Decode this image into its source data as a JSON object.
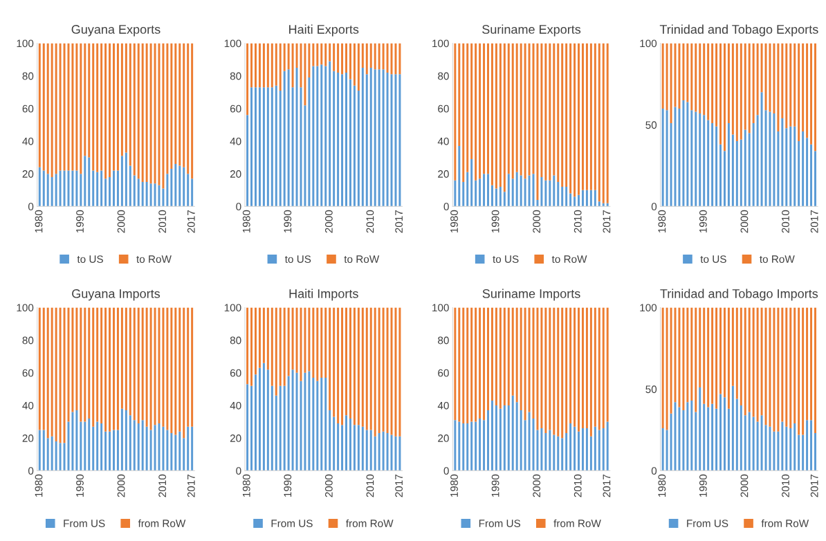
{
  "chart_data": [
    {
      "type": "bar",
      "stacked": true,
      "title": "Guyana Exports",
      "categories": [
        "1980",
        null,
        null,
        null,
        null,
        null,
        null,
        null,
        null,
        null,
        "1990",
        null,
        null,
        null,
        null,
        null,
        null,
        null,
        null,
        null,
        "2000",
        null,
        null,
        null,
        null,
        null,
        null,
        null,
        null,
        null,
        "2010",
        null,
        null,
        null,
        null,
        null,
        null,
        "2017"
      ],
      "ylim": [
        0,
        100
      ],
      "yticks": [
        0,
        20,
        40,
        60,
        80,
        100
      ],
      "legend": "bottom",
      "series": [
        {
          "name": "to US",
          "color": "#5b9bd5",
          "values": [
            24,
            22,
            20,
            18,
            20,
            22,
            22,
            22,
            22,
            22,
            20,
            31,
            30,
            22,
            21,
            22,
            17,
            18,
            22,
            22,
            31,
            33,
            25,
            19,
            17,
            15,
            15,
            14,
            14,
            13,
            11,
            20,
            23,
            26,
            25,
            24,
            20,
            17
          ]
        },
        {
          "name": "to RoW",
          "color": "#ed7d31",
          "values": [
            76,
            78,
            80,
            82,
            80,
            78,
            78,
            78,
            78,
            78,
            80,
            69,
            70,
            78,
            79,
            78,
            83,
            82,
            78,
            78,
            69,
            67,
            75,
            81,
            83,
            85,
            85,
            86,
            86,
            87,
            89,
            80,
            77,
            74,
            75,
            76,
            80,
            83
          ]
        }
      ]
    },
    {
      "type": "bar",
      "stacked": true,
      "title": "Haiti Exports",
      "categories": [
        "1980",
        null,
        null,
        null,
        null,
        null,
        null,
        null,
        null,
        null,
        "1990",
        null,
        null,
        null,
        null,
        null,
        null,
        null,
        null,
        null,
        "2000",
        null,
        null,
        null,
        null,
        null,
        null,
        null,
        null,
        null,
        "2010",
        null,
        null,
        null,
        null,
        null,
        null,
        "2017"
      ],
      "ylim": [
        0,
        100
      ],
      "yticks": [
        0,
        20,
        40,
        60,
        80,
        100
      ],
      "legend": "bottom",
      "series": [
        {
          "name": "to US",
          "color": "#5b9bd5",
          "values": [
            56,
            73,
            73,
            73,
            73,
            73,
            73,
            74,
            71,
            83,
            84,
            73,
            85,
            73,
            62,
            79,
            86,
            86,
            87,
            86,
            89,
            83,
            82,
            81,
            82,
            78,
            74,
            71,
            85,
            81,
            85,
            84,
            84,
            84,
            82,
            81,
            81,
            81
          ]
        },
        {
          "name": "to RoW",
          "color": "#ed7d31",
          "values": [
            44,
            27,
            27,
            27,
            27,
            27,
            27,
            26,
            29,
            17,
            16,
            27,
            15,
            27,
            38,
            21,
            14,
            14,
            13,
            14,
            11,
            17,
            18,
            19,
            18,
            22,
            26,
            29,
            15,
            19,
            15,
            16,
            16,
            16,
            18,
            19,
            19,
            19
          ]
        }
      ]
    },
    {
      "type": "bar",
      "stacked": true,
      "title": "Suriname Exports",
      "categories": [
        "1980",
        null,
        null,
        null,
        null,
        null,
        null,
        null,
        null,
        null,
        "1990",
        null,
        null,
        null,
        null,
        null,
        null,
        null,
        null,
        null,
        "2000",
        null,
        null,
        null,
        null,
        null,
        null,
        null,
        null,
        null,
        "2010",
        null,
        null,
        null,
        null,
        null,
        null,
        "2017"
      ],
      "ylim": [
        0,
        100
      ],
      "yticks": [
        0,
        20,
        40,
        60,
        80,
        100
      ],
      "legend": "bottom",
      "series": [
        {
          "name": "to US",
          "color": "#5b9bd5",
          "values": [
            16,
            37,
            15,
            21,
            29,
            16,
            17,
            20,
            20,
            13,
            11,
            12,
            9,
            20,
            17,
            21,
            19,
            17,
            19,
            20,
            4,
            18,
            16,
            16,
            19,
            15,
            12,
            12,
            8,
            6,
            7,
            10,
            10,
            10,
            10,
            3,
            2,
            2
          ]
        },
        {
          "name": "to RoW",
          "color": "#ed7d31",
          "values": [
            84,
            63,
            85,
            79,
            71,
            84,
            83,
            80,
            80,
            87,
            89,
            88,
            91,
            80,
            83,
            79,
            81,
            83,
            81,
            80,
            96,
            82,
            84,
            84,
            81,
            85,
            88,
            88,
            92,
            94,
            93,
            90,
            90,
            90,
            90,
            97,
            98,
            98
          ]
        }
      ]
    },
    {
      "type": "bar",
      "stacked": true,
      "title": "Trinidad and Tobago Exports",
      "categories": [
        "1980",
        null,
        null,
        null,
        null,
        null,
        null,
        null,
        null,
        null,
        "1990",
        null,
        null,
        null,
        null,
        null,
        null,
        null,
        null,
        null,
        "2000",
        null,
        null,
        null,
        null,
        null,
        null,
        null,
        null,
        null,
        "2010",
        null,
        null,
        null,
        null,
        null,
        null,
        "2017"
      ],
      "ylim": [
        0,
        100
      ],
      "yticks": [
        0,
        50,
        100
      ],
      "legend": "bottom",
      "series": [
        {
          "name": "to US",
          "color": "#5b9bd5",
          "values": [
            60,
            59,
            51,
            61,
            60,
            65,
            64,
            59,
            58,
            57,
            56,
            53,
            51,
            49,
            38,
            34,
            51,
            44,
            40,
            41,
            47,
            45,
            51,
            56,
            70,
            59,
            58,
            57,
            46,
            54,
            48,
            49,
            49,
            40,
            46,
            42,
            38,
            34
          ]
        },
        {
          "name": "to RoW",
          "color": "#ed7d31",
          "values": [
            40,
            41,
            49,
            39,
            40,
            35,
            36,
            41,
            42,
            43,
            44,
            47,
            49,
            51,
            62,
            66,
            49,
            56,
            60,
            59,
            53,
            55,
            49,
            44,
            30,
            41,
            42,
            43,
            54,
            46,
            52,
            51,
            51,
            60,
            54,
            58,
            62,
            66
          ]
        }
      ]
    },
    {
      "type": "bar",
      "stacked": true,
      "title": "Guyana Imports",
      "categories": [
        "1980",
        null,
        null,
        null,
        null,
        null,
        null,
        null,
        null,
        null,
        "1990",
        null,
        null,
        null,
        null,
        null,
        null,
        null,
        null,
        null,
        "2000",
        null,
        null,
        null,
        null,
        null,
        null,
        null,
        null,
        null,
        "2010",
        null,
        null,
        null,
        null,
        null,
        null,
        "2017"
      ],
      "ylim": [
        0,
        100
      ],
      "yticks": [
        0,
        20,
        40,
        60,
        80,
        100
      ],
      "legend": "bottom",
      "series": [
        {
          "name": "From US",
          "color": "#5b9bd5",
          "values": [
            25,
            25,
            20,
            21,
            18,
            17,
            17,
            30,
            36,
            37,
            30,
            30,
            32,
            27,
            30,
            29,
            24,
            24,
            25,
            25,
            38,
            37,
            34,
            31,
            29,
            31,
            27,
            25,
            28,
            29,
            27,
            25,
            23,
            22,
            24,
            20,
            27,
            27
          ]
        },
        {
          "name": "from RoW",
          "color": "#ed7d31",
          "values": [
            75,
            75,
            80,
            79,
            82,
            83,
            83,
            70,
            64,
            63,
            70,
            70,
            68,
            73,
            70,
            71,
            76,
            76,
            75,
            75,
            62,
            63,
            66,
            69,
            71,
            69,
            73,
            75,
            72,
            71,
            73,
            75,
            77,
            78,
            76,
            80,
            73,
            73
          ]
        }
      ]
    },
    {
      "type": "bar",
      "stacked": true,
      "title": "Haiti Imports",
      "categories": [
        "1980",
        null,
        null,
        null,
        null,
        null,
        null,
        null,
        null,
        null,
        "1990",
        null,
        null,
        null,
        null,
        null,
        null,
        null,
        null,
        null,
        "2000",
        null,
        null,
        null,
        null,
        null,
        null,
        null,
        null,
        null,
        "2010",
        null,
        null,
        null,
        null,
        null,
        null,
        "2017"
      ],
      "ylim": [
        0,
        100
      ],
      "yticks": [
        0,
        20,
        40,
        60,
        80,
        100
      ],
      "legend": "bottom",
      "series": [
        {
          "name": "From US",
          "color": "#5b9bd5",
          "values": [
            53,
            52,
            59,
            63,
            66,
            62,
            52,
            46,
            52,
            52,
            58,
            62,
            60,
            55,
            60,
            61,
            57,
            55,
            57,
            57,
            37,
            33,
            29,
            28,
            34,
            32,
            28,
            28,
            27,
            25,
            25,
            21,
            23,
            24,
            23,
            22,
            21,
            21
          ]
        },
        {
          "name": "from RoW",
          "color": "#ed7d31",
          "values": [
            47,
            48,
            41,
            37,
            34,
            38,
            48,
            54,
            48,
            48,
            42,
            38,
            40,
            45,
            40,
            39,
            43,
            45,
            43,
            43,
            63,
            67,
            71,
            72,
            66,
            68,
            72,
            72,
            73,
            75,
            75,
            79,
            77,
            76,
            77,
            78,
            79,
            79
          ]
        }
      ]
    },
    {
      "type": "bar",
      "stacked": true,
      "title": "Suriname Imports",
      "categories": [
        "1980",
        null,
        null,
        null,
        null,
        null,
        null,
        null,
        null,
        null,
        "1990",
        null,
        null,
        null,
        null,
        null,
        null,
        null,
        null,
        null,
        "2000",
        null,
        null,
        null,
        null,
        null,
        null,
        null,
        null,
        null,
        "2010",
        null,
        null,
        null,
        null,
        null,
        null,
        "2017"
      ],
      "ylim": [
        0,
        100
      ],
      "yticks": [
        0,
        20,
        40,
        60,
        80,
        100
      ],
      "legend": "bottom",
      "series": [
        {
          "name": "From US",
          "color": "#5b9bd5",
          "values": [
            31,
            30,
            29,
            29,
            30,
            30,
            32,
            31,
            37,
            43,
            40,
            38,
            40,
            40,
            46,
            42,
            37,
            31,
            36,
            32,
            25,
            26,
            23,
            25,
            22,
            21,
            20,
            23,
            29,
            27,
            24,
            26,
            26,
            21,
            27,
            25,
            26,
            30
          ]
        },
        {
          "name": "from RoW",
          "color": "#ed7d31",
          "values": [
            69,
            70,
            71,
            71,
            70,
            70,
            68,
            69,
            63,
            57,
            60,
            62,
            60,
            60,
            54,
            58,
            63,
            69,
            64,
            68,
            75,
            74,
            77,
            75,
            78,
            79,
            80,
            77,
            71,
            73,
            76,
            74,
            74,
            79,
            73,
            75,
            74,
            70
          ]
        }
      ]
    },
    {
      "type": "bar",
      "stacked": true,
      "title": "Trinidad and Tobago Imports",
      "categories": [
        "1980",
        null,
        null,
        null,
        null,
        null,
        null,
        null,
        null,
        null,
        "1990",
        null,
        null,
        null,
        null,
        null,
        null,
        null,
        null,
        null,
        "2000",
        null,
        null,
        null,
        null,
        null,
        null,
        null,
        null,
        null,
        "2010",
        null,
        null,
        null,
        null,
        null,
        null,
        "2017"
      ],
      "ylim": [
        0,
        100
      ],
      "yticks": [
        0,
        50,
        100
      ],
      "legend": "bottom",
      "series": [
        {
          "name": "From US",
          "color": "#5b9bd5",
          "values": [
            26,
            25,
            35,
            42,
            39,
            37,
            42,
            43,
            36,
            51,
            41,
            39,
            41,
            38,
            47,
            45,
            38,
            52,
            44,
            40,
            34,
            36,
            33,
            30,
            34,
            28,
            27,
            24,
            24,
            30,
            27,
            26,
            29,
            22,
            22,
            31,
            31,
            23
          ]
        },
        {
          "name": "from RoW",
          "color": "#ed7d31",
          "values": [
            74,
            75,
            65,
            58,
            61,
            63,
            58,
            57,
            64,
            49,
            59,
            61,
            59,
            62,
            53,
            55,
            62,
            48,
            56,
            60,
            66,
            64,
            67,
            70,
            66,
            72,
            73,
            76,
            76,
            70,
            73,
            74,
            71,
            78,
            78,
            69,
            69,
            77
          ]
        }
      ]
    }
  ]
}
